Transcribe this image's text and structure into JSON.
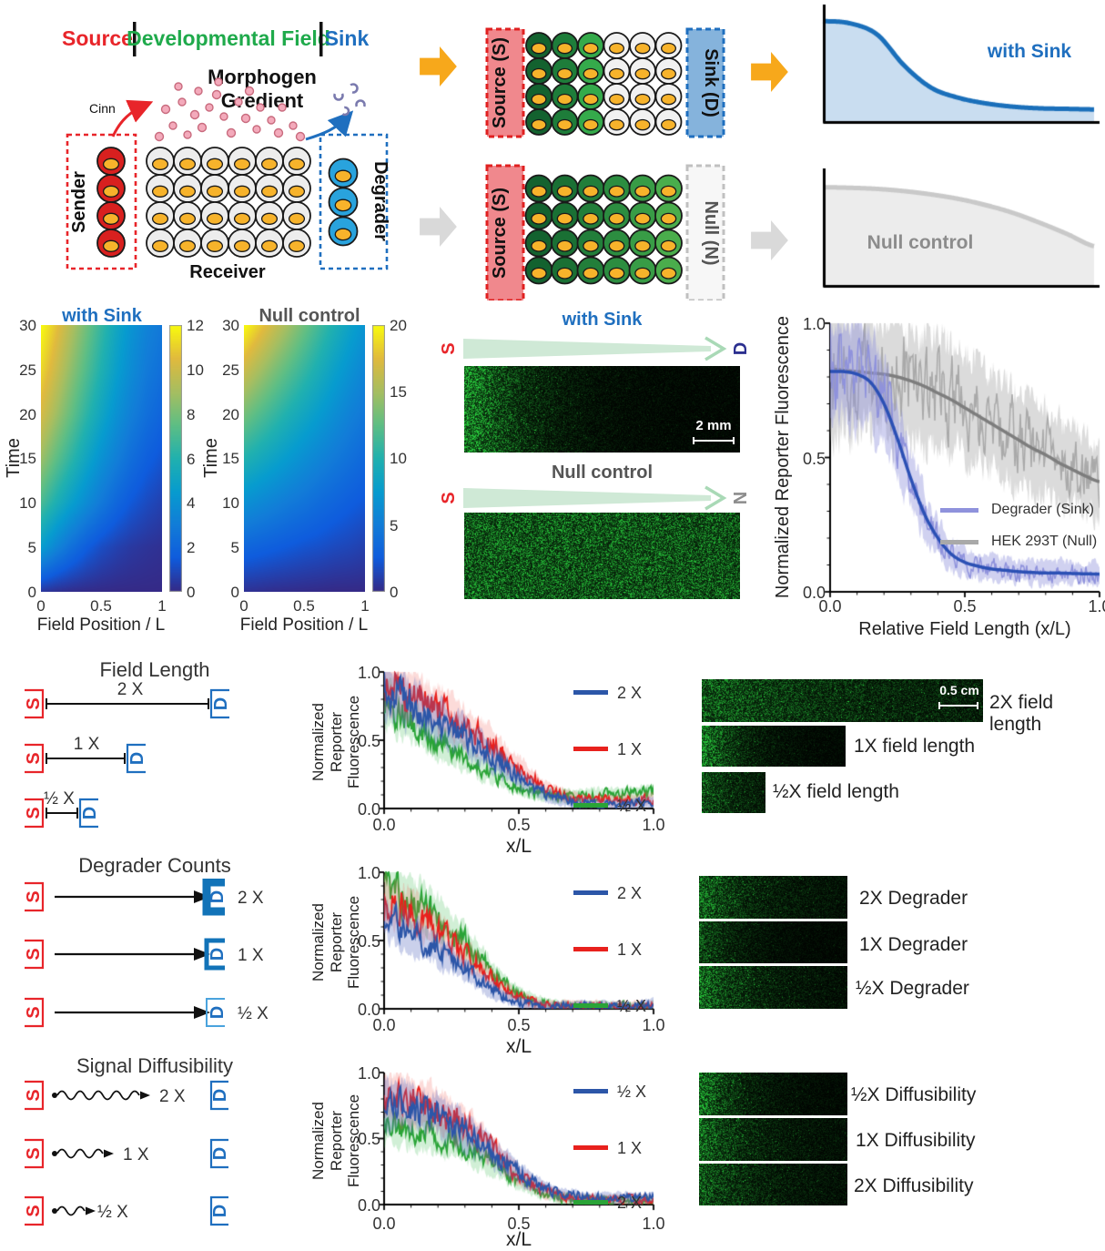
{
  "colors": {
    "accent_red": "#e8252a",
    "accent_green": "#1faa4b",
    "accent_blue": "#1f6fbf",
    "navy": "#2b2f8f",
    "gray_label": "#8c8c8c",
    "orange_arrow": "#f7a81b",
    "gray_arrow": "#d9d9d9",
    "nucleus_orange": "#f7b32b",
    "sender_cell": "#d8201f",
    "degrader_cell": "#29a3dd",
    "source_box": "#f0888d",
    "sink_box": "#85b3dc"
  },
  "markers": {
    "s": "S",
    "d": "D"
  },
  "panel_a": {
    "header": {
      "source": "Source",
      "field": "Developmental Field",
      "sink": "Sink"
    },
    "morphogen_line1": "Morphogen",
    "morphogen_line2": "Gredient",
    "cinn": "Cinn",
    "sender": "Sender",
    "receiver": "Receiver",
    "degrader": "Degrader"
  },
  "panel_b": {
    "source_top": "Source (S)",
    "sink": "Sink (D)",
    "source_bottom": "Source (S)",
    "null_label": "Null (N)",
    "top_cols": [
      "#13622f",
      "#1e7d3a",
      "#35aa4b",
      "#f1f1f1",
      "#f1f1f1",
      "#f1f1f1"
    ],
    "bottom_cols": [
      "#13622f",
      "#1a7034",
      "#227e3a",
      "#2c8d40",
      "#389c46",
      "#4aad4c"
    ]
  },
  "panel_d": {
    "title_sink": "with Sink",
    "title_null": "Null control",
    "s1": "S",
    "d": "D",
    "s2": "S",
    "n": "N",
    "scalebar": "2 mm"
  },
  "panel_f": {
    "field_length": {
      "title": "Field Length",
      "row_labels": [
        "2 X",
        "1 X",
        "½ X"
      ],
      "image_labels": [
        "2X field length",
        "1X field length",
        "½X field length"
      ],
      "scalebar": "0.5 cm"
    },
    "degrader": {
      "title": "Degrader Counts",
      "row_labels": [
        "2 X",
        "1 X",
        "½ X"
      ],
      "image_labels": [
        "2X Degrader",
        "1X Degrader",
        "½X Degrader"
      ]
    },
    "diffusibility": {
      "title": "Signal Diffusibility",
      "row_labels": [
        "2 X",
        "1 X",
        "½ X"
      ],
      "image_labels": [
        "½X Diffusibility",
        "1X Diffusibility",
        "2X Diffusibility"
      ]
    }
  },
  "chart_data": [
    {
      "id": "sketch_sink",
      "type": "area",
      "title": "with Sink",
      "x_step": 0.1,
      "values": [
        0.9,
        0.88,
        0.78,
        0.5,
        0.3,
        0.21,
        0.16,
        0.13,
        0.115,
        0.11,
        0.105
      ],
      "color": "#1a6fba",
      "fill": "#c9ddf0",
      "title_color": "#1f6fbf"
    },
    {
      "id": "sketch_null",
      "type": "area",
      "title": "Null control",
      "x_step": 0.1,
      "values": [
        0.88,
        0.875,
        0.865,
        0.845,
        0.815,
        0.775,
        0.72,
        0.65,
        0.56,
        0.46,
        0.35
      ],
      "color": "#c9c9c9",
      "fill": "#ececec",
      "title_color": "#9a9a9a"
    },
    {
      "id": "kymo_sink",
      "type": "heatmap",
      "title": "with Sink",
      "xlabel": "Field Position / L",
      "ylabel": "Time",
      "x_ticks": [
        "0",
        "0.5",
        "1"
      ],
      "y_ticks": [
        "30",
        "25",
        "20",
        "15",
        "10",
        "5",
        "0"
      ],
      "colorbar_ticks": [
        "12",
        "10",
        "8",
        "6",
        "4",
        "2",
        "0"
      ],
      "vmax": 12,
      "t_max": 30,
      "grid": [
        [
          0.4,
          0.2,
          0.1,
          0.05,
          0.02,
          0,
          0,
          0,
          0
        ],
        [
          4.6,
          3.4,
          2.4,
          1.6,
          1.05,
          0.7,
          0.45,
          0.3,
          0.2
        ],
        [
          7.0,
          5.8,
          4.7,
          3.7,
          2.8,
          2.0,
          1.4,
          1.0,
          0.7
        ],
        [
          8.8,
          7.5,
          6.3,
          5.1,
          4.0,
          3.1,
          2.3,
          1.7,
          1.3
        ],
        [
          10.2,
          8.9,
          7.6,
          6.3,
          5.1,
          4.0,
          3.1,
          2.4,
          1.9
        ],
        [
          11.2,
          9.9,
          8.5,
          7.2,
          5.9,
          4.7,
          3.7,
          2.9,
          2.4
        ],
        [
          12,
          10.7,
          9.3,
          7.9,
          6.5,
          5.2,
          4.1,
          3.3,
          2.8
        ]
      ]
    },
    {
      "id": "kymo_null",
      "type": "heatmap",
      "title": "Null control",
      "xlabel": "Field Position / L",
      "ylabel": "Time",
      "x_ticks": [
        "0",
        "0.5",
        "1"
      ],
      "y_ticks": [
        "30",
        "25",
        "20",
        "15",
        "10",
        "5",
        "0"
      ],
      "colorbar_ticks": [
        "20",
        "15",
        "10",
        "5",
        "0"
      ],
      "vmax": 20,
      "t_max": 30,
      "grid": [
        [
          0.4,
          0.3,
          0.2,
          0.15,
          0.1,
          0.05,
          0,
          0,
          0
        ],
        [
          3.3,
          3.0,
          2.7,
          2.4,
          2.1,
          1.9,
          1.6,
          1.4,
          1.1
        ],
        [
          6.6,
          6.0,
          5.4,
          4.8,
          4.3,
          3.7,
          3.2,
          2.7,
          2.3
        ],
        [
          10,
          9.1,
          8.2,
          7.3,
          6.4,
          5.6,
          4.8,
          4.1,
          3.4
        ],
        [
          13.3,
          12.1,
          10.9,
          9.7,
          8.6,
          7.5,
          6.4,
          5.4,
          4.6
        ],
        [
          16.6,
          15.1,
          13.6,
          12.2,
          10.8,
          9.4,
          8.0,
          6.8,
          5.7
        ],
        [
          20,
          18.2,
          16.4,
          14.7,
          13.0,
          11.3,
          9.7,
          8.2,
          6.9
        ]
      ]
    },
    {
      "id": "reporter_main",
      "type": "line",
      "xlabel": "Relative Field Length (x/L)",
      "ylabel": "Normalized Reporter Fluorescence",
      "x_ticks": [
        "0.0",
        "0.5",
        "1.0"
      ],
      "y_ticks": [
        "1.0",
        "0.5",
        "0.0"
      ],
      "xlim": [
        0,
        1
      ],
      "ylim": [
        0,
        1
      ],
      "series": [
        {
          "name": "Degrader (Sink)",
          "x_step": 0.05,
          "fit": true,
          "amp": 1,
          "lw": 1.5,
          "color": "#2b50b4",
          "noisy": "#8f92dc",
          "band": "rgba(143,146,220,0.42)",
          "values": [
            0.82,
            0.82,
            0.81,
            0.78,
            0.7,
            0.57,
            0.42,
            0.29,
            0.2,
            0.14,
            0.11,
            0.095,
            0.085,
            0.08,
            0.075,
            0.072,
            0.07,
            0.07,
            0.068,
            0.067,
            0.066
          ]
        },
        {
          "name": "HEK 293T (Null)",
          "x_step": 0.05,
          "fit": true,
          "amp": 1.25,
          "lw": 1.5,
          "color": "#7d7d7d",
          "noisy": "#a9a9a9",
          "band": "rgba(175,175,175,0.45)",
          "values": [
            0.83,
            0.825,
            0.82,
            0.815,
            0.81,
            0.8,
            0.785,
            0.765,
            0.74,
            0.715,
            0.685,
            0.655,
            0.625,
            0.595,
            0.565,
            0.535,
            0.51,
            0.48,
            0.455,
            0.43,
            0.41
          ]
        }
      ]
    },
    {
      "id": "plot_field_length",
      "type": "line",
      "xlabel": "x/L",
      "ylabel": "Normalized\nReporter\nFluorescence",
      "x_ticks": [
        "0.0",
        "0.5",
        "1.0"
      ],
      "y_ticks": [
        "1.0",
        "0.5",
        "0.0"
      ],
      "xlim": [
        0,
        1
      ],
      "ylim": [
        0,
        1
      ],
      "series": [
        {
          "name": "2 X",
          "x_step": 0.1,
          "lw": 1.9,
          "color": "#2c56a8",
          "band": "rgba(80,100,190,0.30)",
          "values": [
            0.88,
            0.76,
            0.64,
            0.52,
            0.38,
            0.22,
            0.1,
            0.05,
            0.03,
            0.03,
            0.05
          ]
        },
        {
          "name": "1 X",
          "x_step": 0.1,
          "lw": 1.9,
          "color": "#e8211d",
          "band": "rgba(240,90,80,0.22)",
          "values": [
            0.9,
            0.82,
            0.72,
            0.6,
            0.46,
            0.3,
            0.15,
            0.08,
            0.06,
            0.06,
            0.07
          ]
        },
        {
          "name": "½ X",
          "x_step": 0.1,
          "lw": 1.9,
          "color": "#2aa437",
          "band": "rgba(70,190,90,0.25)",
          "values": [
            0.76,
            0.63,
            0.5,
            0.38,
            0.26,
            0.16,
            0.1,
            0.09,
            0.1,
            0.11,
            0.12
          ]
        }
      ]
    },
    {
      "id": "plot_degrader",
      "type": "line",
      "xlabel": "x/L",
      "ylabel": "Normalized\nReporter\nFluorescence",
      "x_ticks": [
        "0.0",
        "0.5",
        "1.0"
      ],
      "y_ticks": [
        "1.0",
        "0.5",
        "0.0"
      ],
      "xlim": [
        0,
        1
      ],
      "ylim": [
        0,
        1
      ],
      "series": [
        {
          "name": "2 X",
          "x_step": 0.1,
          "lw": 1.9,
          "color": "#2c56a8",
          "band": "rgba(80,100,190,0.30)",
          "values": [
            0.66,
            0.54,
            0.42,
            0.28,
            0.14,
            0.05,
            0.02,
            0.02,
            0.02,
            0.02,
            0.03
          ]
        },
        {
          "name": "1 X",
          "x_step": 0.1,
          "lw": 1.9,
          "color": "#e8211d",
          "band": "rgba(240,90,80,0.22)",
          "values": [
            0.8,
            0.7,
            0.56,
            0.4,
            0.22,
            0.08,
            0.03,
            0.02,
            0.02,
            0.02,
            0.02
          ]
        },
        {
          "name": "½ X",
          "x_step": 0.1,
          "lw": 1.9,
          "color": "#2aa437",
          "band": "rgba(70,190,90,0.25)",
          "values": [
            0.9,
            0.8,
            0.66,
            0.48,
            0.28,
            0.11,
            0.04,
            0.02,
            0.02,
            0.02,
            0.02
          ]
        }
      ]
    },
    {
      "id": "plot_diffusibility",
      "type": "line",
      "xlabel": "x/L",
      "ylabel": "Normalized\nReporter\nFluorescence",
      "x_ticks": [
        "0.0",
        "0.5",
        "1.0"
      ],
      "y_ticks": [
        "1.0",
        "0.5",
        "0.0"
      ],
      "xlim": [
        0,
        1
      ],
      "ylim": [
        0,
        1
      ],
      "series": [
        {
          "name": "½ X",
          "x_step": 0.1,
          "lw": 1.9,
          "color": "#2c56a8",
          "band": "rgba(80,100,190,0.30)",
          "values": [
            0.76,
            0.73,
            0.66,
            0.55,
            0.4,
            0.24,
            0.12,
            0.07,
            0.05,
            0.05,
            0.05
          ]
        },
        {
          "name": "1 X",
          "x_step": 0.1,
          "lw": 1.9,
          "color": "#e8211d",
          "band": "rgba(240,90,80,0.22)",
          "values": [
            0.84,
            0.78,
            0.7,
            0.58,
            0.42,
            0.22,
            0.1,
            0.05,
            0.04,
            0.04,
            0.04
          ]
        },
        {
          "name": "2 X",
          "x_step": 0.1,
          "lw": 1.9,
          "color": "#2aa437",
          "band": "rgba(70,190,90,0.25)",
          "values": [
            0.6,
            0.56,
            0.51,
            0.43,
            0.31,
            0.17,
            0.08,
            0.04,
            0.03,
            0.03,
            0.03
          ]
        }
      ]
    }
  ],
  "microscopy": [
    {
      "id": "d_sink",
      "floor": 0.05,
      "amp": 0.85,
      "tau": 0.18
    },
    {
      "id": "d_null",
      "floor": 0.5,
      "amp": 0.05,
      "tau": 1.0
    },
    {
      "id": "fl_2x",
      "floor": 0.16,
      "amp": 0.38,
      "tau": 0.45
    },
    {
      "id": "fl_1x",
      "floor": 0.05,
      "amp": 0.75,
      "tau": 0.22
    },
    {
      "id": "fl_half",
      "floor": 0.12,
      "amp": 0.4,
      "tau": 0.5
    },
    {
      "id": "dc_2x",
      "floor": 0.1,
      "amp": 0.55,
      "tau": 0.28
    },
    {
      "id": "dc_1x",
      "floor": 0.05,
      "amp": 0.45,
      "tau": 0.22
    },
    {
      "id": "dc_half",
      "floor": 0.08,
      "amp": 0.6,
      "tau": 0.3
    },
    {
      "id": "df_half",
      "floor": 0.06,
      "amp": 0.7,
      "tau": 0.22
    },
    {
      "id": "df_1x",
      "floor": 0.08,
      "amp": 0.55,
      "tau": 0.3
    },
    {
      "id": "df_2x",
      "floor": 0.07,
      "amp": 0.45,
      "tau": 0.38
    }
  ]
}
